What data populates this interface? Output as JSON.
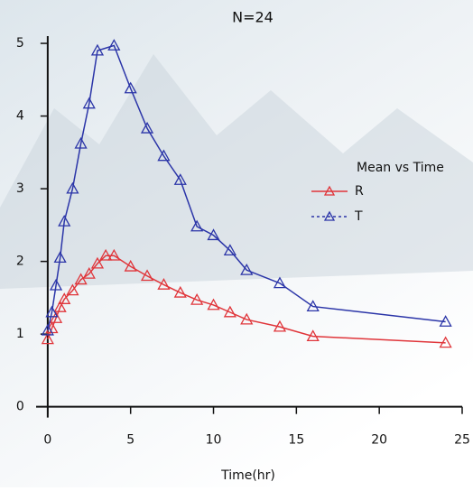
{
  "chart_data": {
    "type": "line",
    "title": "N=24",
    "x_label": "Time(hr)",
    "legend_title": "Mean vs Time",
    "xlim": [
      -0.7,
      25
    ],
    "ylim": [
      -0.6,
      5.1
    ],
    "xticks": [
      0,
      5,
      10,
      15,
      20,
      25
    ],
    "yticks": [
      0,
      1,
      2,
      3,
      4,
      5
    ],
    "legend": "right",
    "series": [
      {
        "name": "R",
        "color": "#e0353a",
        "x": [
          0,
          0.25,
          0.5,
          0.75,
          1,
          1.5,
          2,
          2.5,
          3,
          3.5,
          4,
          5,
          6,
          7,
          8,
          9,
          10,
          11,
          12,
          14,
          16,
          24
        ],
        "values": [
          0.93,
          1.08,
          1.22,
          1.37,
          1.48,
          1.6,
          1.75,
          1.83,
          1.97,
          2.08,
          2.08,
          1.93,
          1.8,
          1.68,
          1.57,
          1.47,
          1.4,
          1.3,
          1.2,
          1.1,
          0.97,
          0.88
        ]
      },
      {
        "name": "T",
        "color": "#2b35a8",
        "x": [
          0,
          0.25,
          0.5,
          0.75,
          1,
          1.5,
          2,
          2.5,
          3,
          4,
          5,
          6,
          7,
          8,
          9,
          10,
          11,
          12,
          14,
          16,
          24
        ],
        "values": [
          1.05,
          1.3,
          1.67,
          2.05,
          2.55,
          3.0,
          3.62,
          4.17,
          4.9,
          4.97,
          4.38,
          3.83,
          3.45,
          3.12,
          2.48,
          2.36,
          2.15,
          1.88,
          1.7,
          1.38,
          1.17
        ]
      }
    ]
  }
}
